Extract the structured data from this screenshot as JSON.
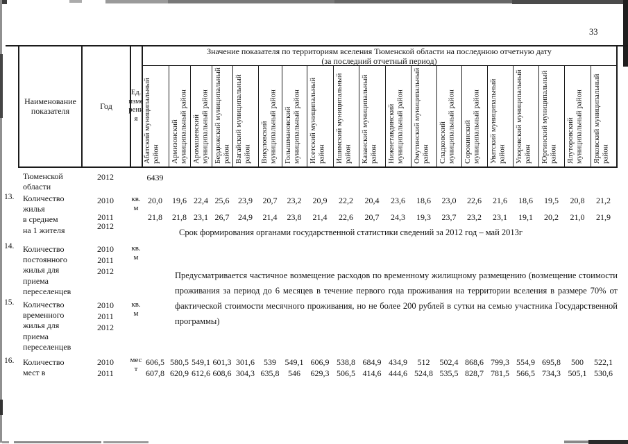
{
  "page_number": "33",
  "table_header": {
    "name_col": "Наименование показателя",
    "year_col": "Год",
    "unit_col": "Ед. измерения",
    "value_title": "Значение показателя по территориям вселения Тюменской области на последнюю отчетную дату",
    "value_subtitle": "(за последний отчетный период)",
    "districts": [
      "Абатский муниципальный район",
      "Армизонский муниципальный район",
      "Аромашевский муниципальный район",
      "Бердюжский муниципальный район",
      "Вагайский муниципальный район",
      "Викуловский муниципальный район",
      "Голышмановский муниципальный район",
      "Исетский муниципальный район",
      "Ишимский муниципальный район",
      "Казанский муниципальный район",
      "Нижнетавдинский муниципальный район",
      "Омутинский муниципальный район",
      "Сладковский муниципальный район",
      "Сорокинский муниципальный район",
      "Уватский муниципальный район",
      "Упоровский муниципальный район",
      "Юргинский муниципальный район",
      "Ялуторовский муниципальный район",
      "Ярковский муниципальный район"
    ]
  },
  "rows": [
    {
      "num": "",
      "label": "Тюменской\nобласти",
      "years": [
        "2012"
      ],
      "unit": "",
      "values": {
        "y2012": [
          "6439"
        ]
      }
    },
    {
      "num": "13.",
      "label": "Количество\nжилья\nв среднем\nна 1 жителя",
      "years": [
        "2010",
        "2011",
        "2012"
      ],
      "unit": "кв.\nм",
      "values": {
        "y2010": [
          "20,0",
          "19,6",
          "22,4",
          "25,6",
          "23,9",
          "20,7",
          "23,2",
          "20,9",
          "22,2",
          "20,4",
          "23,6",
          "18,6",
          "23,0",
          "22,6",
          "21,6",
          "18,6",
          "19,5",
          "20,8",
          "21,2"
        ],
        "y2011": [
          "21,8",
          "21,8",
          "23,1",
          "26,7",
          "24,9",
          "21,4",
          "23,8",
          "21,4",
          "22,6",
          "20,7",
          "24,3",
          "19,3",
          "23,7",
          "23,2",
          "23,1",
          "19,1",
          "20,2",
          "21,0",
          "21,9"
        ]
      },
      "note_2012": "Срок формирования органами государственной статистики сведений за 2012 год – май 2013г"
    },
    {
      "num": "14.",
      "label": "Количество\nпостоянного\nжилья для\nприема\nпереселенцев",
      "years": [
        "2010",
        "2011",
        "2012"
      ],
      "unit": "кв.\nм"
    },
    {
      "num": "15.",
      "label": "Количество\nвременного\nжилья для\nприема\nпереселенцев",
      "years": [
        "2010",
        "2011",
        "2012"
      ],
      "unit": "кв.\nм"
    },
    {
      "num": "16.",
      "label": "Количество\nмест в",
      "years": [
        "2010",
        "2011"
      ],
      "unit": "мес\nт",
      "values": {
        "y2010": [
          "606,5",
          "580,5",
          "549,1",
          "601,3",
          "301,6",
          "539",
          "549,1",
          "606,9",
          "538,8",
          "684,9",
          "434,9",
          "512",
          "502,4",
          "868,6",
          "799,3",
          "554,9",
          "695,8",
          "500",
          "522,1"
        ],
        "y2011": [
          "607,8",
          "620,9",
          "612,6",
          "608,6",
          "304,3",
          "635,8",
          "546",
          "629,3",
          "506,5",
          "414,6",
          "444,6",
          "524,8",
          "535,5",
          "828,7",
          "781,5",
          "566,5",
          "734,3",
          "505,1",
          "530,6"
        ]
      }
    }
  ],
  "shared_note_rows_14_15": "Предусматривается частичное возмещение расходов по временному жилищному размещению (возмещение стоимости проживания за период до 6 месяцев в течение первого года проживания на территории вселения в размере 70% от фактической стоимости месячного проживания, но не более 200 рублей в сутки на семью участника Государственной программы)"
}
